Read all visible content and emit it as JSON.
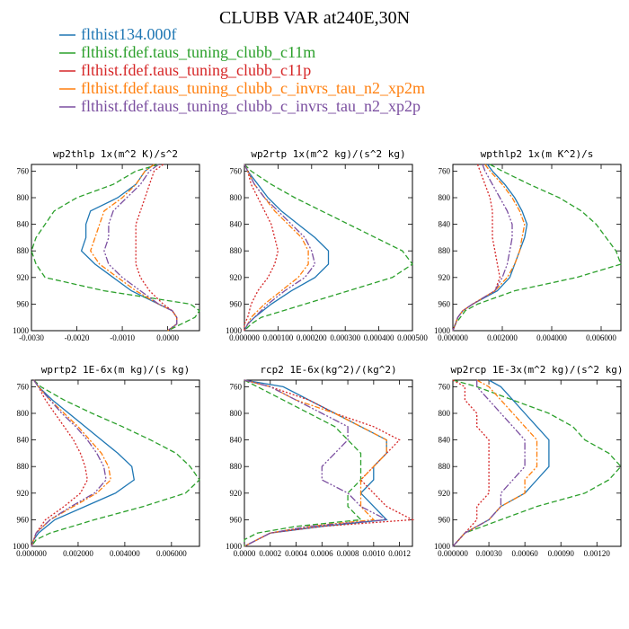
{
  "figure": {
    "title": "CLUBB VAR at240E,30N"
  },
  "series_info": [
    {
      "name": "flthist134.000f",
      "color": "#1f77b4",
      "dash": ""
    },
    {
      "name": "flthist.fdef.taus_tuning_clubb_c11m",
      "color": "#2ca02c",
      "dash": "6,3"
    },
    {
      "name": "flthist.fdef.taus_tuning_clubb_c11p",
      "color": "#d62728",
      "dash": "2,2"
    },
    {
      "name": "flthist.fdef.taus_tuning_clubb_c_invrs_tau_n2_xp2m",
      "color": "#ff7f0e",
      "dash": "6,2,2,2"
    },
    {
      "name": "flthist.fdef.taus_tuning_clubb_c_invrs_tau_n2_xp2p",
      "color": "#7b4fa0",
      "dash": "8,2,2,2,2,2"
    }
  ],
  "chart_data": [
    {
      "type": "line",
      "title": "wp2thlp  1x(m^2 K)/s^2",
      "xlim": [
        -0.003,
        0.0007
      ],
      "ylim": [
        1000,
        750
      ],
      "xticks": [
        -0.003,
        -0.002,
        -0.001,
        0
      ],
      "xtick_labels": [
        "-0.0030",
        "-0.0020",
        "-0.0010",
        "0.0000"
      ],
      "yticks": [
        760,
        800,
        840,
        880,
        920,
        960,
        1000
      ],
      "y": [
        750,
        760,
        780,
        800,
        820,
        840,
        860,
        880,
        900,
        920,
        940,
        960,
        970,
        980,
        990,
        1000
      ],
      "series": [
        {
          "values": [
            -0.0003,
            -0.0005,
            -0.0007,
            -0.0011,
            -0.0017,
            -0.0018,
            -0.0018,
            -0.0019,
            -0.0016,
            -0.0012,
            -0.0008,
            -0.0002,
            0.0001,
            0.0002,
            0.0002,
            0.0
          ]
        },
        {
          "values": [
            -0.0002,
            -0.0007,
            -0.0012,
            -0.002,
            -0.0025,
            -0.0027,
            -0.0029,
            -0.003,
            -0.0029,
            -0.0027,
            -0.0014,
            0.0005,
            0.0007,
            0.0006,
            0.0003,
            0.0
          ]
        },
        {
          "values": [
            -0.0001,
            -0.0003,
            -0.0004,
            -0.0005,
            -0.0006,
            -0.0007,
            -0.0007,
            -0.0007,
            -0.0007,
            -0.0006,
            -0.0004,
            -0.0001,
            0.0001,
            0.0002,
            0.0002,
            0.0
          ]
        },
        {
          "values": [
            -0.0003,
            -0.0005,
            -0.0007,
            -0.001,
            -0.0014,
            -0.0015,
            -0.0016,
            -0.0017,
            -0.0015,
            -0.0011,
            -0.0007,
            -0.0002,
            0.0001,
            0.0002,
            0.0002,
            0.0
          ]
        },
        {
          "values": [
            -0.0002,
            -0.0004,
            -0.0006,
            -0.0009,
            -0.0012,
            -0.0013,
            -0.0013,
            -0.0014,
            -0.0013,
            -0.001,
            -0.0006,
            -0.0002,
            0.0001,
            0.0002,
            0.0002,
            0.0
          ]
        }
      ]
    },
    {
      "type": "line",
      "title": "wp2rtp  1x(m^2 kg)/(s^2 kg)",
      "xlim": [
        0,
        0.0005
      ],
      "ylim": [
        1000,
        750
      ],
      "xticks": [
        0,
        0.0001,
        0.0002,
        0.0003,
        0.0004,
        0.0005
      ],
      "xtick_labels": [
        "0.000000",
        "0.000100",
        "0.000200",
        "0.000300",
        "0.000400",
        "0.000500"
      ],
      "yticks": [
        760,
        800,
        840,
        880,
        920,
        960,
        1000
      ],
      "y": [
        750,
        760,
        780,
        800,
        820,
        840,
        860,
        880,
        900,
        920,
        940,
        960,
        980,
        990,
        1000
      ],
      "series": [
        {
          "values": [
            0.0,
            1e-05,
            4e-05,
            7e-05,
            0.00011,
            0.00016,
            0.00021,
            0.00025,
            0.00025,
            0.00021,
            0.00014,
            8e-05,
            3e-05,
            1e-05,
            0.0
          ]
        },
        {
          "values": [
            0.0,
            2e-05,
            8e-05,
            0.00015,
            0.00023,
            0.00031,
            0.00039,
            0.00047,
            0.0005,
            0.00044,
            0.00031,
            0.00018,
            5e-05,
            2e-05,
            0.0
          ]
        },
        {
          "values": [
            0.0,
            1e-05,
            2e-05,
            4e-05,
            6e-05,
            8e-05,
            9e-05,
            0.0001,
            9e-05,
            7e-05,
            4e-05,
            2e-05,
            1e-05,
            0.0,
            0.0
          ]
        },
        {
          "values": [
            0.0,
            1e-05,
            3e-05,
            6e-05,
            9e-05,
            0.00013,
            0.00017,
            0.00019,
            0.00019,
            0.00016,
            0.00011,
            6e-05,
            2e-05,
            1e-05,
            0.0
          ]
        },
        {
          "values": [
            0.0,
            1e-05,
            3e-05,
            6e-05,
            0.0001,
            0.00014,
            0.00018,
            0.0002,
            0.00021,
            0.00018,
            0.00012,
            7e-05,
            3e-05,
            1e-05,
            0.0
          ]
        }
      ]
    },
    {
      "type": "line",
      "title": "wpthlp2  1x(m K^2)/s",
      "xlim": [
        0,
        0.0068
      ],
      "ylim": [
        1000,
        750
      ],
      "xticks": [
        0,
        0.002,
        0.004,
        0.006
      ],
      "xtick_labels": [
        "0.000000",
        "0.002000",
        "0.004000",
        "0.006000"
      ],
      "yticks": [
        760,
        800,
        840,
        880,
        920,
        960,
        1000
      ],
      "y": [
        750,
        760,
        780,
        800,
        820,
        840,
        860,
        880,
        900,
        920,
        940,
        960,
        970,
        980,
        990,
        1000
      ],
      "series": [
        {
          "values": [
            0.0014,
            0.0016,
            0.0021,
            0.0025,
            0.0028,
            0.003,
            0.0029,
            0.0027,
            0.0025,
            0.0023,
            0.0018,
            0.0008,
            0.0004,
            0.0002,
            0.0001,
            0.0
          ]
        },
        {
          "values": [
            0.0015,
            0.002,
            0.0031,
            0.0043,
            0.0052,
            0.0058,
            0.0062,
            0.0066,
            0.0068,
            0.005,
            0.0025,
            0.001,
            0.0005,
            0.0003,
            0.0001,
            0.0
          ]
        },
        {
          "values": [
            0.001,
            0.0011,
            0.0013,
            0.0015,
            0.0016,
            0.0016,
            0.0016,
            0.0017,
            0.0018,
            0.0019,
            0.0017,
            0.0008,
            0.0004,
            0.0002,
            0.0001,
            0.0
          ]
        },
        {
          "values": [
            0.0013,
            0.0015,
            0.002,
            0.0024,
            0.0027,
            0.0029,
            0.0028,
            0.0027,
            0.0025,
            0.0022,
            0.0017,
            0.0008,
            0.0004,
            0.0002,
            0.0001,
            0.0
          ]
        },
        {
          "values": [
            0.0012,
            0.0013,
            0.0016,
            0.0019,
            0.0022,
            0.0024,
            0.0024,
            0.0023,
            0.0022,
            0.002,
            0.0017,
            0.0008,
            0.0004,
            0.0002,
            0.0001,
            0.0
          ]
        }
      ]
    },
    {
      "type": "line",
      "title": "wprtp2  1E-6x(m kg)/(s kg)",
      "xlim": [
        0,
        0.0072
      ],
      "ylim": [
        1000,
        750
      ],
      "xticks": [
        0,
        0.002,
        0.004,
        0.006
      ],
      "xtick_labels": [
        "0.000000",
        "0.002000",
        "0.004000",
        "0.006000"
      ],
      "yticks": [
        760,
        800,
        840,
        880,
        920,
        960,
        1000
      ],
      "y": [
        750,
        760,
        780,
        800,
        820,
        840,
        860,
        880,
        900,
        920,
        940,
        960,
        980,
        990,
        1000
      ],
      "series": [
        {
          "values": [
            0.0001,
            0.0003,
            0.0009,
            0.0016,
            0.0023,
            0.003,
            0.0037,
            0.0043,
            0.0044,
            0.0036,
            0.0023,
            0.001,
            0.0003,
            0.0001,
            0.0
          ]
        },
        {
          "values": [
            0.0001,
            0.0004,
            0.0014,
            0.0026,
            0.0039,
            0.0051,
            0.0062,
            0.0068,
            0.0072,
            0.0066,
            0.0048,
            0.0027,
            0.0008,
            0.0002,
            0.0
          ]
        },
        {
          "values": [
            0.0001,
            0.0003,
            0.0006,
            0.001,
            0.0014,
            0.0018,
            0.0021,
            0.0023,
            0.0024,
            0.0021,
            0.0014,
            0.0006,
            0.0002,
            0.0001,
            0.0
          ]
        },
        {
          "values": [
            0.0001,
            0.0003,
            0.0008,
            0.0014,
            0.002,
            0.0025,
            0.003,
            0.0033,
            0.0034,
            0.0028,
            0.0018,
            0.0008,
            0.0002,
            0.0001,
            0.0
          ]
        },
        {
          "values": [
            0.0001,
            0.0003,
            0.0008,
            0.0013,
            0.0019,
            0.0024,
            0.0028,
            0.0031,
            0.0032,
            0.0027,
            0.0017,
            0.0008,
            0.0002,
            0.0001,
            0.0
          ]
        }
      ]
    },
    {
      "type": "line",
      "title": "rcp2  1E-6x(kg^2)/(kg^2)",
      "xlim": [
        0,
        0.0013
      ],
      "ylim": [
        1000,
        750
      ],
      "xticks": [
        0,
        0.0002,
        0.0004,
        0.0006,
        0.0008,
        0.001,
        0.0012
      ],
      "xtick_labels": [
        "0.0000",
        "0.0002",
        "0.0004",
        "0.0006",
        "0.0008",
        "0.0010",
        "0.0012"
      ],
      "yticks": [
        760,
        800,
        840,
        880,
        920,
        960,
        1000
      ],
      "y": [
        750,
        760,
        780,
        800,
        820,
        840,
        860,
        880,
        900,
        920,
        940,
        960,
        970,
        980,
        990,
        1000
      ],
      "series": [
        {
          "values": [
            0.0,
            0.0003,
            0.0005,
            0.0007,
            0.0009,
            0.0011,
            0.0011,
            0.001,
            0.001,
            0.0009,
            0.001,
            0.0011,
            0.0006,
            0.0002,
            0.0001,
            0.0
          ]
        },
        {
          "values": [
            0.0,
            0.0001,
            0.0003,
            0.0005,
            0.0007,
            0.0008,
            0.0009,
            0.0009,
            0.0009,
            0.0008,
            0.0008,
            0.0009,
            0.0004,
            0.0001,
            0.0,
            0.0
          ]
        },
        {
          "values": [
            0.0,
            0.0002,
            0.0005,
            0.0007,
            0.001,
            0.0012,
            0.0011,
            0.001,
            0.0009,
            0.001,
            0.0011,
            0.0013,
            0.0006,
            0.0002,
            0.0001,
            0.0
          ]
        },
        {
          "values": [
            0.0,
            0.0002,
            0.0004,
            0.0007,
            0.0009,
            0.0011,
            0.0011,
            0.001,
            0.0009,
            0.0009,
            0.0009,
            0.001,
            0.0005,
            0.0002,
            0.0001,
            0.0
          ]
        },
        {
          "values": [
            0.0,
            0.0002,
            0.0004,
            0.0006,
            0.0008,
            0.0008,
            0.0007,
            0.0006,
            0.0006,
            0.0008,
            0.0009,
            0.0011,
            0.0005,
            0.0002,
            0.0001,
            0.0
          ]
        }
      ]
    },
    {
      "type": "line",
      "title": "wp2rcp  1E-3x(m^2 kg)/(s^2 kg)",
      "xlim": [
        0,
        0.0014
      ],
      "ylim": [
        1000,
        750
      ],
      "xticks": [
        0,
        0.0003,
        0.0006,
        0.0009,
        0.0012
      ],
      "xtick_labels": [
        "0.000000",
        "0.00030",
        "0.00060",
        "0.00090",
        "0.00120"
      ],
      "yticks": [
        760,
        800,
        840,
        880,
        920,
        960,
        1000
      ],
      "y": [
        750,
        760,
        780,
        800,
        820,
        840,
        860,
        880,
        900,
        920,
        940,
        960,
        980,
        990,
        1000
      ],
      "series": [
        {
          "values": [
            0.0003,
            0.0004,
            0.0005,
            0.0006,
            0.0007,
            0.0008,
            0.0008,
            0.0008,
            0.0007,
            0.0006,
            0.0004,
            0.0003,
            0.0001,
            5e-05,
            0.0
          ]
        },
        {
          "values": [
            0.0,
            0.0002,
            0.0005,
            0.0008,
            0.001,
            0.0011,
            0.0013,
            0.0014,
            0.0013,
            0.0011,
            0.0007,
            0.0004,
            0.0001,
            5e-05,
            0.0
          ]
        },
        {
          "values": [
            0.0,
            0.0001,
            0.0001,
            0.0002,
            0.0002,
            0.0003,
            0.0003,
            0.0003,
            0.0003,
            0.0003,
            0.0002,
            0.0002,
            0.0001,
            5e-05,
            0.0
          ]
        },
        {
          "values": [
            0.0002,
            0.0003,
            0.0004,
            0.0005,
            0.0006,
            0.0007,
            0.0007,
            0.0007,
            0.0006,
            0.0006,
            0.0004,
            0.0003,
            0.0001,
            5e-05,
            0.0
          ]
        },
        {
          "values": [
            0.0002,
            0.0002,
            0.0003,
            0.0004,
            0.0005,
            0.0006,
            0.0006,
            0.0006,
            0.0005,
            0.0004,
            0.0004,
            0.0003,
            0.0001,
            5e-05,
            0.0
          ]
        }
      ]
    }
  ]
}
